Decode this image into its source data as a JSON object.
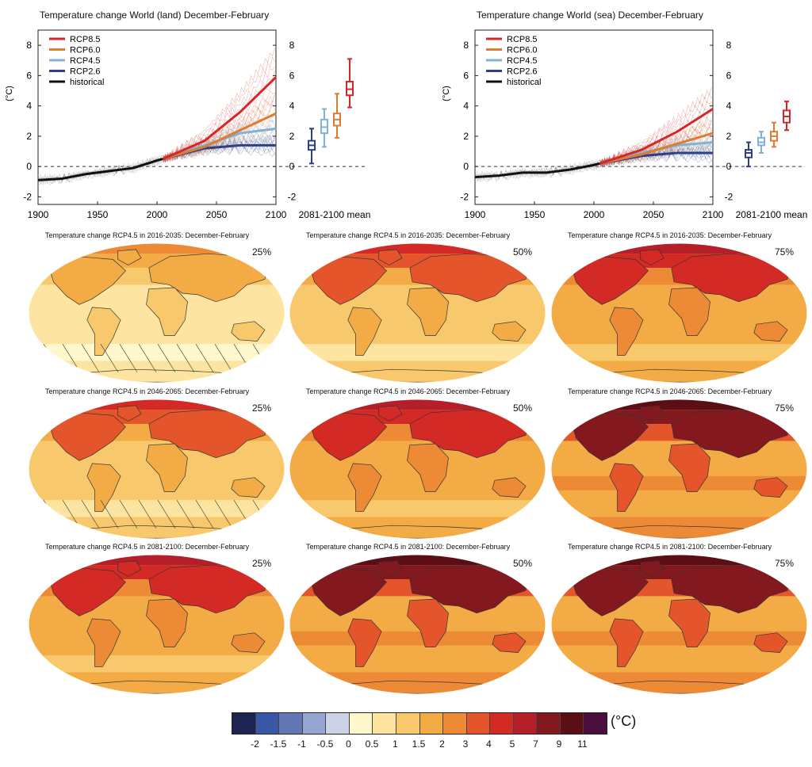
{
  "ts_panels": [
    {
      "title": "Temperature change World (land) December-February",
      "ylabel": "(°C)",
      "box_label": "2081-2100 mean",
      "legend": [
        "RCP8.5",
        "RCP6.0",
        "RCP4.5",
        "RCP2.6",
        "historical"
      ],
      "x_ticks": [
        "1900",
        "1950",
        "2000",
        "2050",
        "2100"
      ],
      "y_ticks_left": [
        "8",
        "6",
        "4",
        "2",
        "0",
        "-2"
      ],
      "y_ticks_right": [
        "8",
        "6",
        "4",
        "2",
        "0",
        "-2"
      ]
    },
    {
      "title": "Temperature change World (sea) December-February",
      "ylabel": "(°C)",
      "box_label": "2081-2100 mean",
      "legend": [
        "RCP8.5",
        "RCP6.0",
        "RCP4.5",
        "RCP2.6",
        "historical"
      ],
      "x_ticks": [
        "1900",
        "1950",
        "2000",
        "2050",
        "2100"
      ],
      "y_ticks_left": [
        "8",
        "6",
        "4",
        "2",
        "0",
        "-2"
      ],
      "y_ticks_right": [
        "8",
        "6",
        "4",
        "2",
        "0",
        "-2"
      ]
    }
  ],
  "chart_data": [
    {
      "type": "line",
      "title": "Temperature change World (land) December-February",
      "ylabel": "(°C)",
      "xlim": [
        1900,
        2100
      ],
      "ylim": [
        -2.5,
        9
      ],
      "series": [
        {
          "name": "historical",
          "color": "#111111",
          "x": [
            1900,
            1920,
            1940,
            1960,
            1980,
            2000,
            2005
          ],
          "values": [
            -0.9,
            -0.8,
            -0.5,
            -0.3,
            -0.1,
            0.4,
            0.5
          ]
        },
        {
          "name": "RCP2.6",
          "color": "#2e3f86",
          "x": [
            2005,
            2040,
            2070,
            2100
          ],
          "values": [
            0.5,
            1.2,
            1.4,
            1.4
          ]
        },
        {
          "name": "RCP4.5",
          "color": "#7fb1d9",
          "x": [
            2005,
            2040,
            2070,
            2100
          ],
          "values": [
            0.5,
            1.4,
            2.2,
            2.5
          ]
        },
        {
          "name": "RCP6.0",
          "color": "#e07b2f",
          "x": [
            2005,
            2040,
            2070,
            2100
          ],
          "values": [
            0.5,
            1.3,
            2.4,
            3.5
          ]
        },
        {
          "name": "RCP8.5",
          "color": "#d62728",
          "x": [
            2005,
            2040,
            2070,
            2100
          ],
          "values": [
            0.5,
            1.7,
            3.6,
            5.9
          ]
        }
      ],
      "boxes": [
        {
          "name": "RCP2.6",
          "color": "#2e3f86",
          "min": 0.2,
          "q1": 1.1,
          "median": 1.4,
          "q3": 1.7,
          "max": 2.5
        },
        {
          "name": "RCP4.5",
          "color": "#7fb1d9",
          "min": 1.3,
          "q1": 2.2,
          "median": 2.6,
          "q3": 3.1,
          "max": 3.8
        },
        {
          "name": "RCP6.0",
          "color": "#e07b2f",
          "min": 1.9,
          "q1": 2.7,
          "median": 3.1,
          "q3": 3.5,
          "max": 4.8
        },
        {
          "name": "RCP8.5",
          "color": "#d62728",
          "min": 3.9,
          "q1": 4.7,
          "median": 5.1,
          "q3": 5.6,
          "max": 7.1
        }
      ]
    },
    {
      "type": "line",
      "title": "Temperature change World (sea) December-February",
      "ylabel": "(°C)",
      "xlim": [
        1900,
        2100
      ],
      "ylim": [
        -2.5,
        9
      ],
      "series": [
        {
          "name": "historical",
          "color": "#111111",
          "x": [
            1900,
            1920,
            1940,
            1960,
            1980,
            2000,
            2005
          ],
          "values": [
            -0.7,
            -0.6,
            -0.4,
            -0.4,
            -0.2,
            0.1,
            0.2
          ]
        },
        {
          "name": "RCP2.6",
          "color": "#2e3f86",
          "x": [
            2005,
            2040,
            2070,
            2100
          ],
          "values": [
            0.2,
            0.7,
            0.9,
            0.9
          ]
        },
        {
          "name": "RCP4.5",
          "color": "#7fb1d9",
          "x": [
            2005,
            2040,
            2070,
            2100
          ],
          "values": [
            0.2,
            0.9,
            1.4,
            1.6
          ]
        },
        {
          "name": "RCP6.0",
          "color": "#e07b2f",
          "x": [
            2005,
            2040,
            2070,
            2100
          ],
          "values": [
            0.2,
            0.8,
            1.5,
            2.2
          ]
        },
        {
          "name": "RCP8.5",
          "color": "#d62728",
          "x": [
            2005,
            2040,
            2070,
            2100
          ],
          "values": [
            0.2,
            1.1,
            2.3,
            3.8
          ]
        }
      ],
      "boxes": [
        {
          "name": "RCP2.6",
          "color": "#2e3f86",
          "min": 0.0,
          "q1": 0.6,
          "median": 0.9,
          "q3": 1.1,
          "max": 1.6
        },
        {
          "name": "RCP4.5",
          "color": "#7fb1d9",
          "min": 0.9,
          "q1": 1.4,
          "median": 1.6,
          "q3": 1.9,
          "max": 2.3
        },
        {
          "name": "RCP6.0",
          "color": "#e07b2f",
          "min": 1.3,
          "q1": 1.7,
          "median": 2.0,
          "q3": 2.3,
          "max": 2.9
        },
        {
          "name": "RCP8.5",
          "color": "#d62728",
          "min": 2.4,
          "q1": 2.9,
          "median": 3.3,
          "q3": 3.7,
          "max": 4.3
        }
      ]
    }
  ],
  "maps": [
    {
      "title": "Temperature change RCP4.5 in 2016-2035: December-February",
      "pct": "25%",
      "level": 1
    },
    {
      "title": "Temperature change RCP4.5 in 2016-2035: December-February",
      "pct": "50%",
      "level": 2
    },
    {
      "title": "Temperature change RCP4.5 in 2016-2035: December-February",
      "pct": "75%",
      "level": 3
    },
    {
      "title": "Temperature change RCP4.5 in 2046-2065: December-February",
      "pct": "25%",
      "level": 2
    },
    {
      "title": "Temperature change RCP4.5 in 2046-2065: December-February",
      "pct": "50%",
      "level": 3
    },
    {
      "title": "Temperature change RCP4.5 in 2046-2065: December-February",
      "pct": "75%",
      "level": 4
    },
    {
      "title": "Temperature change RCP4.5 in 2081-2100: December-February",
      "pct": "25%",
      "level": 3
    },
    {
      "title": "Temperature change RCP4.5 in 2081-2100: December-February",
      "pct": "50%",
      "level": 4
    },
    {
      "title": "Temperature change RCP4.5 in 2081-2100: December-February",
      "pct": "75%",
      "level": 5
    }
  ],
  "colorbar": {
    "unit": "(°C)",
    "colors": [
      "#1d2452",
      "#3a56a6",
      "#6177b4",
      "#95a6d2",
      "#cdd3e6",
      "#fff8cc",
      "#fde4a0",
      "#f8c86d",
      "#f2ab45",
      "#ec8a35",
      "#e4552c",
      "#d42a25",
      "#b51f2a",
      "#84181f",
      "#5b0f14",
      "#4a0f3c"
    ],
    "ticks": [
      "-2",
      "-1.5",
      "-1",
      "-0.5",
      "0",
      "0.5",
      "1",
      "1.5",
      "2",
      "3",
      "4",
      "5",
      "7",
      "9",
      "11"
    ]
  }
}
